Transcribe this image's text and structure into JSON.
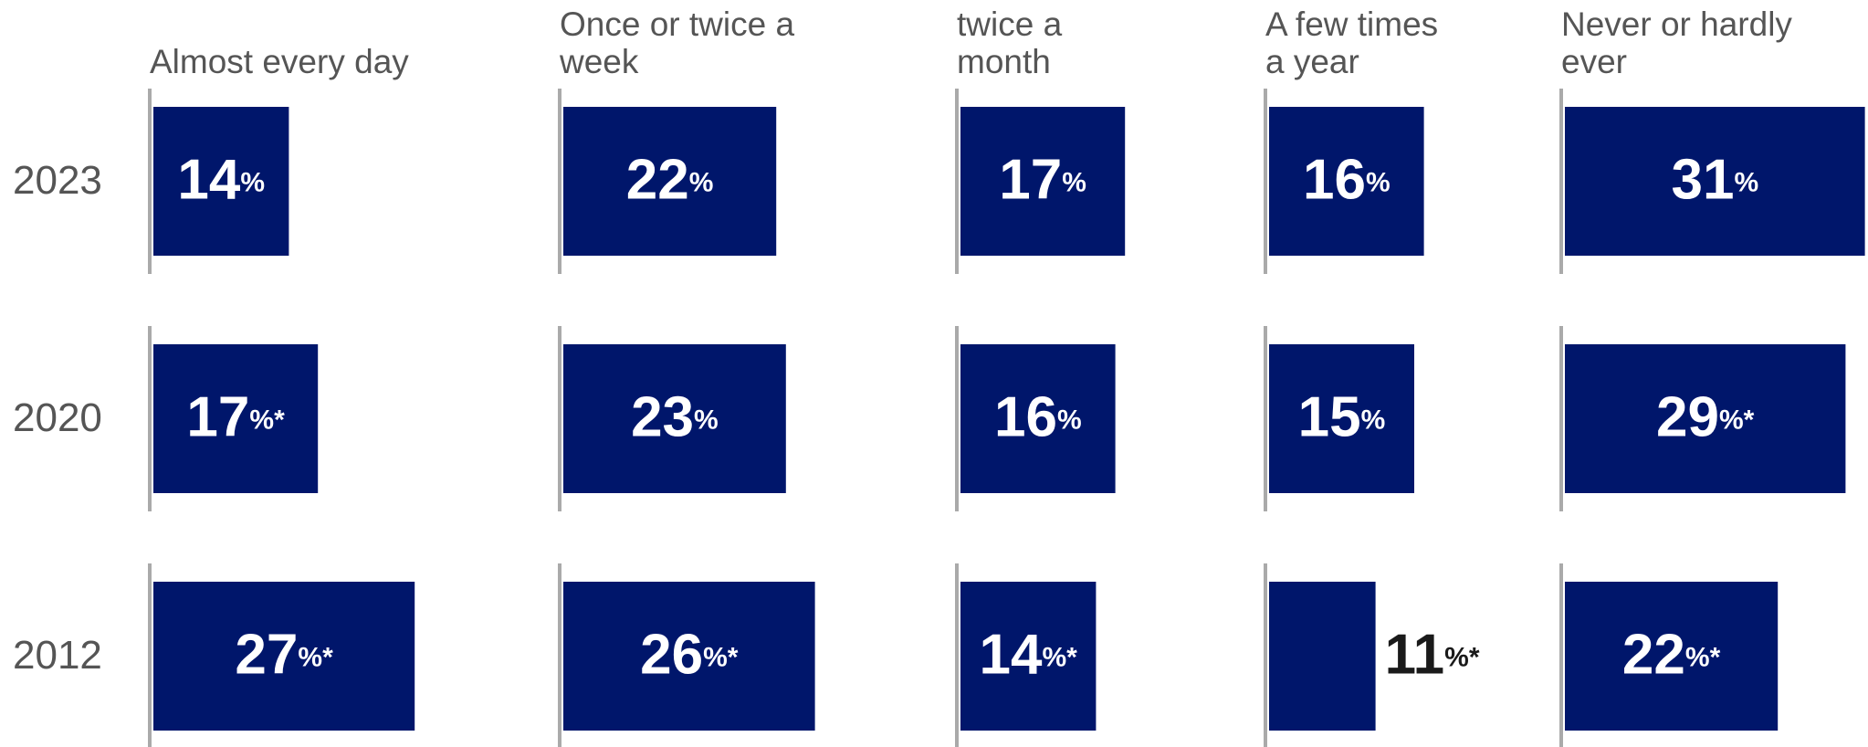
{
  "chart_data": {
    "type": "bar",
    "categories": [
      "Almost every day",
      "Once or twice a week",
      "twice a month",
      "A few times a year",
      "Never or hardly ever"
    ],
    "color": "#00166b",
    "series": [
      {
        "name": "2023",
        "values": [
          14,
          22,
          17,
          16,
          31
        ],
        "value_labels": [
          "14%",
          "22%",
          "17%",
          "16%",
          "31%"
        ]
      },
      {
        "name": "2020",
        "values": [
          17,
          23,
          16,
          15,
          29
        ],
        "value_labels": [
          "17%*",
          "23%",
          "16%",
          "15%",
          "29%*"
        ]
      },
      {
        "name": "2012",
        "values": [
          27,
          26,
          14,
          11,
          22
        ],
        "value_labels": [
          "27%*",
          "26%*",
          "14%*",
          "11%*",
          "22%*"
        ]
      }
    ]
  }
}
